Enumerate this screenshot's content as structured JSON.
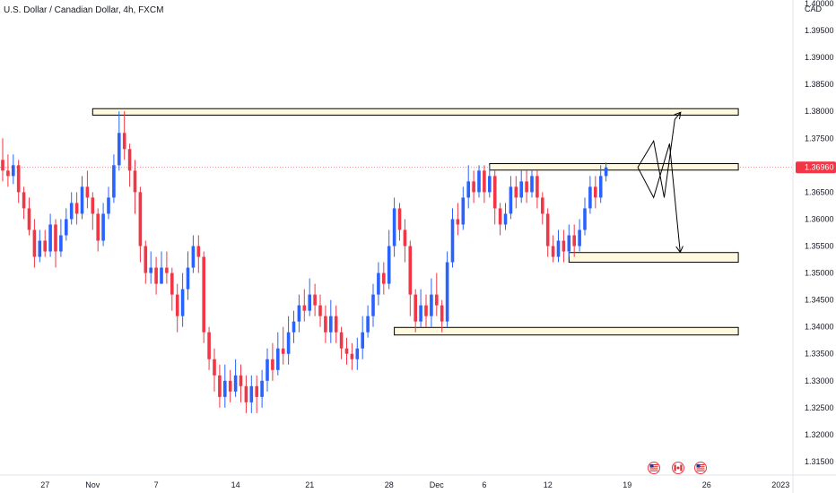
{
  "chart_data": {
    "type": "candlestick",
    "title": "U.S. Dollar / Canadian Dollar, 4h, FXCM",
    "currency_label": "CAD",
    "current_price": "1.36960",
    "ylim": [
      1.3125,
      1.4
    ],
    "y_ticks": [
      "1.40000",
      "1.39500",
      "1.39000",
      "1.38500",
      "1.38000",
      "1.37500",
      "1.36500",
      "1.36000",
      "1.35500",
      "1.35000",
      "1.34500",
      "1.34000",
      "1.33500",
      "1.33000",
      "1.32500",
      "1.32000",
      "1.31500"
    ],
    "x_ticks": [
      {
        "label": "27",
        "idx": 8
      },
      {
        "label": "Nov",
        "idx": 17
      },
      {
        "label": "7",
        "idx": 29
      },
      {
        "label": "14",
        "idx": 44
      },
      {
        "label": "21",
        "idx": 58
      },
      {
        "label": "28",
        "idx": 73
      },
      {
        "label": "Dec",
        "idx": 82
      },
      {
        "label": "6",
        "idx": 91
      },
      {
        "label": "12",
        "idx": 103
      },
      {
        "label": "19",
        "idx": 118
      },
      {
        "label": "26",
        "idx": 133
      },
      {
        "label": "2023",
        "idx": 147
      }
    ],
    "x_count": 150,
    "candles": [
      [
        1.371,
        1.369,
        1.375,
        1.367
      ],
      [
        1.369,
        1.368,
        1.372,
        1.366
      ],
      [
        1.368,
        1.37,
        1.372,
        1.3665
      ],
      [
        1.37,
        1.365,
        1.371,
        1.363
      ],
      [
        1.365,
        1.362,
        1.366,
        1.36
      ],
      [
        1.362,
        1.358,
        1.364,
        1.357
      ],
      [
        1.358,
        1.353,
        1.36,
        1.351
      ],
      [
        1.353,
        1.356,
        1.358,
        1.352
      ],
      [
        1.356,
        1.354,
        1.358,
        1.353
      ],
      [
        1.354,
        1.359,
        1.361,
        1.353
      ],
      [
        1.359,
        1.354,
        1.36,
        1.351
      ],
      [
        1.354,
        1.357,
        1.36,
        1.353
      ],
      [
        1.357,
        1.36,
        1.362,
        1.356
      ],
      [
        1.36,
        1.363,
        1.365,
        1.359
      ],
      [
        1.363,
        1.361,
        1.365,
        1.359
      ],
      [
        1.361,
        1.366,
        1.368,
        1.36
      ],
      [
        1.366,
        1.364,
        1.369,
        1.362
      ],
      [
        1.364,
        1.361,
        1.365,
        1.358
      ],
      [
        1.361,
        1.356,
        1.362,
        1.354
      ],
      [
        1.356,
        1.361,
        1.363,
        1.355
      ],
      [
        1.361,
        1.364,
        1.366,
        1.36
      ],
      [
        1.364,
        1.37,
        1.372,
        1.363
      ],
      [
        1.37,
        1.376,
        1.38,
        1.369
      ],
      [
        1.376,
        1.373,
        1.38,
        1.371
      ],
      [
        1.373,
        1.369,
        1.374,
        1.366
      ],
      [
        1.369,
        1.365,
        1.371,
        1.361
      ],
      [
        1.365,
        1.355,
        1.366,
        1.352
      ],
      [
        1.355,
        1.35,
        1.356,
        1.348
      ],
      [
        1.35,
        1.351,
        1.354,
        1.348
      ],
      [
        1.351,
        1.348,
        1.353,
        1.346
      ],
      [
        1.348,
        1.351,
        1.354,
        1.348
      ],
      [
        1.351,
        1.35,
        1.354,
        1.348
      ],
      [
        1.35,
        1.346,
        1.351,
        1.343
      ],
      [
        1.346,
        1.342,
        1.348,
        1.339
      ],
      [
        1.342,
        1.347,
        1.35,
        1.34
      ],
      [
        1.347,
        1.351,
        1.354,
        1.345
      ],
      [
        1.351,
        1.355,
        1.357,
        1.35
      ],
      [
        1.355,
        1.353,
        1.357,
        1.35
      ],
      [
        1.353,
        1.339,
        1.354,
        1.337
      ],
      [
        1.339,
        1.334,
        1.34,
        1.332
      ],
      [
        1.334,
        1.331,
        1.336,
        1.328
      ],
      [
        1.331,
        1.327,
        1.333,
        1.325
      ],
      [
        1.327,
        1.33,
        1.333,
        1.325
      ],
      [
        1.33,
        1.328,
        1.332,
        1.326
      ],
      [
        1.328,
        1.331,
        1.334,
        1.327
      ],
      [
        1.331,
        1.329,
        1.333,
        1.326
      ],
      [
        1.329,
        1.326,
        1.331,
        1.324
      ],
      [
        1.326,
        1.329,
        1.331,
        1.324
      ],
      [
        1.329,
        1.327,
        1.331,
        1.324
      ],
      [
        1.327,
        1.33,
        1.332,
        1.325
      ],
      [
        1.33,
        1.334,
        1.336,
        1.328
      ],
      [
        1.334,
        1.332,
        1.337,
        1.33
      ],
      [
        1.332,
        1.336,
        1.339,
        1.331
      ],
      [
        1.336,
        1.335,
        1.34,
        1.333
      ],
      [
        1.335,
        1.339,
        1.342,
        1.333
      ],
      [
        1.339,
        1.341,
        1.343,
        1.337
      ],
      [
        1.341,
        1.344,
        1.346,
        1.339
      ],
      [
        1.344,
        1.343,
        1.347,
        1.341
      ],
      [
        1.343,
        1.346,
        1.349,
        1.342
      ],
      [
        1.346,
        1.344,
        1.348,
        1.342
      ],
      [
        1.344,
        1.342,
        1.346,
        1.34
      ],
      [
        1.342,
        1.339,
        1.344,
        1.337
      ],
      [
        1.339,
        1.342,
        1.345,
        1.337
      ],
      [
        1.342,
        1.339,
        1.344,
        1.337
      ],
      [
        1.339,
        1.336,
        1.34,
        1.334
      ],
      [
        1.336,
        1.335,
        1.338,
        1.333
      ],
      [
        1.335,
        1.334,
        1.337,
        1.332
      ],
      [
        1.334,
        1.336,
        1.338,
        1.332
      ],
      [
        1.336,
        1.339,
        1.342,
        1.334
      ],
      [
        1.339,
        1.342,
        1.344,
        1.338
      ],
      [
        1.342,
        1.346,
        1.348,
        1.34
      ],
      [
        1.346,
        1.35,
        1.352,
        1.344
      ],
      [
        1.35,
        1.348,
        1.352,
        1.346
      ],
      [
        1.348,
        1.355,
        1.358,
        1.347
      ],
      [
        1.355,
        1.362,
        1.364,
        1.353
      ],
      [
        1.362,
        1.358,
        1.363,
        1.356
      ],
      [
        1.358,
        1.355,
        1.36,
        1.352
      ],
      [
        1.355,
        1.346,
        1.356,
        1.342
      ],
      [
        1.346,
        1.341,
        1.347,
        1.339
      ],
      [
        1.341,
        1.344,
        1.347,
        1.34
      ],
      [
        1.344,
        1.342,
        1.346,
        1.34
      ],
      [
        1.342,
        1.346,
        1.349,
        1.34
      ],
      [
        1.346,
        1.344,
        1.35,
        1.342
      ],
      [
        1.344,
        1.341,
        1.345,
        1.339
      ],
      [
        1.341,
        1.352,
        1.354,
        1.34
      ],
      [
        1.352,
        1.36,
        1.362,
        1.351
      ],
      [
        1.36,
        1.359,
        1.363,
        1.357
      ],
      [
        1.359,
        1.364,
        1.366,
        1.358
      ],
      [
        1.364,
        1.367,
        1.37,
        1.362
      ],
      [
        1.367,
        1.365,
        1.369,
        1.363
      ],
      [
        1.365,
        1.369,
        1.37,
        1.364
      ],
      [
        1.369,
        1.365,
        1.37,
        1.363
      ],
      [
        1.365,
        1.368,
        1.37,
        1.364
      ],
      [
        1.368,
        1.362,
        1.369,
        1.359
      ],
      [
        1.362,
        1.359,
        1.363,
        1.357
      ],
      [
        1.359,
        1.361,
        1.363,
        1.358
      ],
      [
        1.361,
        1.366,
        1.368,
        1.36
      ],
      [
        1.366,
        1.364,
        1.368,
        1.362
      ],
      [
        1.364,
        1.367,
        1.369,
        1.363
      ],
      [
        1.367,
        1.365,
        1.369,
        1.363
      ],
      [
        1.365,
        1.368,
        1.369,
        1.364
      ],
      [
        1.368,
        1.364,
        1.369,
        1.362
      ],
      [
        1.364,
        1.361,
        1.365,
        1.359
      ],
      [
        1.361,
        1.355,
        1.362,
        1.353
      ],
      [
        1.355,
        1.353,
        1.357,
        1.352
      ],
      [
        1.353,
        1.356,
        1.358,
        1.352
      ],
      [
        1.356,
        1.354,
        1.358,
        1.352
      ],
      [
        1.354,
        1.357,
        1.359,
        1.353
      ],
      [
        1.357,
        1.355,
        1.359,
        1.353
      ],
      [
        1.355,
        1.358,
        1.36,
        1.354
      ],
      [
        1.358,
        1.362,
        1.364,
        1.357
      ],
      [
        1.362,
        1.366,
        1.368,
        1.361
      ],
      [
        1.366,
        1.364,
        1.368,
        1.362
      ],
      [
        1.364,
        1.368,
        1.37,
        1.363
      ],
      [
        1.368,
        1.3696,
        1.3705,
        1.367
      ]
    ],
    "zones": [
      {
        "y_top": 1.3805,
        "y_bottom": 1.3793,
        "from_idx": 17,
        "to_idx": 139
      },
      {
        "y_top": 1.3703,
        "y_bottom": 1.3691,
        "from_idx": 92,
        "to_idx": 139
      },
      {
        "y_top": 1.3538,
        "y_bottom": 1.352,
        "from_idx": 107,
        "to_idx": 139
      },
      {
        "y_top": 1.3399,
        "y_bottom": 1.3385,
        "from_idx": 74,
        "to_idx": 139
      }
    ],
    "projection_paths": [
      [
        [
          120,
          1.3696
        ],
        [
          123,
          1.3745
        ],
        [
          125,
          1.364
        ],
        [
          127,
          1.3785
        ],
        [
          128,
          1.3797
        ]
      ],
      [
        [
          120,
          1.3696
        ],
        [
          123,
          1.364
        ],
        [
          126,
          1.374
        ],
        [
          128,
          1.354
        ]
      ]
    ],
    "event_icons": [
      "us-flag-icon",
      "ca-flag-icon",
      "us-flag-icon"
    ],
    "colors": {
      "up": "#2962ff",
      "down": "#f23645",
      "zone_fill": "#fff9e0",
      "zone_stroke": "#000000",
      "price_tag": "#f23645",
      "grid": "#ffffff"
    }
  }
}
